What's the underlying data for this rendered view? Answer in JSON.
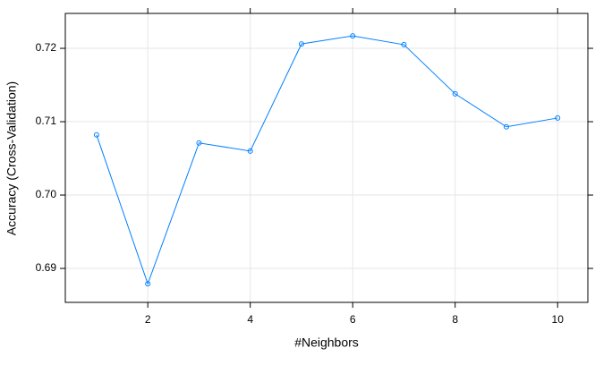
{
  "chart_data": {
    "type": "line",
    "xlabel": "#Neighbors",
    "ylabel": "Accuracy (Cross-Validation)",
    "x": [
      1,
      2,
      3,
      4,
      5,
      6,
      7,
      8,
      9,
      10
    ],
    "series": [
      {
        "color": "#0080ff",
        "values": [
          0.7082,
          0.6879,
          0.7071,
          0.706,
          0.7206,
          0.7217,
          0.7205,
          0.7138,
          0.7093,
          0.7105
        ]
      }
    ],
    "xlim": [
      0.39,
      10.59
    ],
    "xticks": [
      2,
      4,
      6,
      8,
      10
    ],
    "ylim": [
      0.68537,
      0.72476
    ],
    "yticks": [
      0.69,
      {
        "value": 0.7,
        "label": "0.70"
      },
      0.71,
      0.72
    ],
    "grid": true,
    "markers": true
  }
}
